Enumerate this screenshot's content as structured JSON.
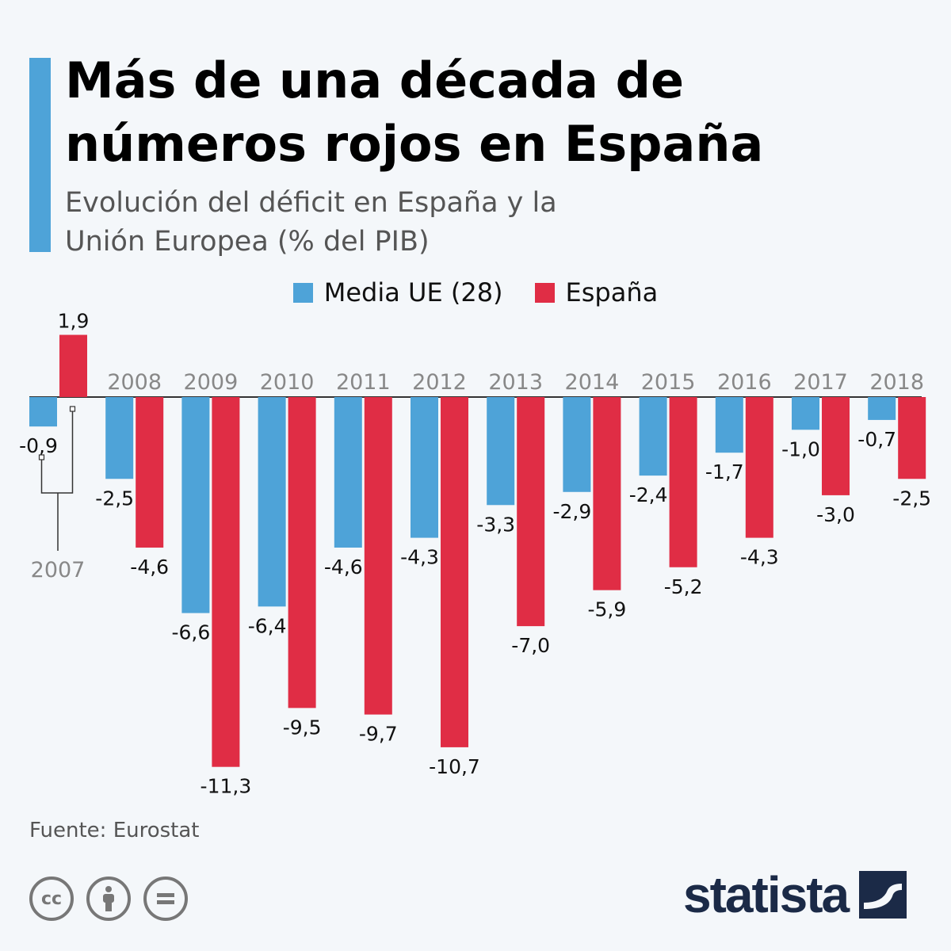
{
  "header": {
    "title": "Más de una década de números rojos en España",
    "subtitle": "Evolución del déficit en España y la Unión Europea (% del PIB)"
  },
  "chart_data": {
    "type": "bar",
    "title": "Más de una década de números rojos en España",
    "subtitle": "Evolución del déficit en España y la Unión Europea (% del PIB)",
    "categories": [
      "2007",
      "2008",
      "2009",
      "2010",
      "2011",
      "2012",
      "2013",
      "2014",
      "2015",
      "2016",
      "2017",
      "2018"
    ],
    "series": [
      {
        "name": "Media UE (28)",
        "color": "#4ea3d8",
        "values": [
          -0.9,
          -2.5,
          -6.6,
          -6.4,
          -4.6,
          -4.3,
          -3.3,
          -2.9,
          -2.4,
          -1.7,
          -1.0,
          -0.7
        ],
        "labels": [
          "-0,9",
          "-2,5",
          "-6,6",
          "-6,4",
          "-4,6",
          "-4,3",
          "-3,3",
          "-2,9",
          "-2,4",
          "-1,7",
          "-1,0",
          "-0,7"
        ]
      },
      {
        "name": "España",
        "color": "#e02d45",
        "values": [
          1.9,
          -4.6,
          -11.3,
          -9.5,
          -9.7,
          -10.7,
          -7.0,
          -5.9,
          -5.2,
          -4.3,
          -3.0,
          -2.5
        ],
        "labels": [
          "1,9",
          "-4,6",
          "-11,3",
          "-9,5",
          "-9,7",
          "-10,7",
          "-7,0",
          "-5,9",
          "-5,2",
          "-4,3",
          "-3,0",
          "-2,5"
        ]
      }
    ],
    "legend": "top-center",
    "grid": false,
    "xlabel": "",
    "ylabel": ""
  },
  "footer": {
    "source": "Fuente: Eurostat",
    "logo": "statista",
    "license_icons": [
      "cc-icon",
      "by-icon",
      "nd-icon"
    ]
  }
}
